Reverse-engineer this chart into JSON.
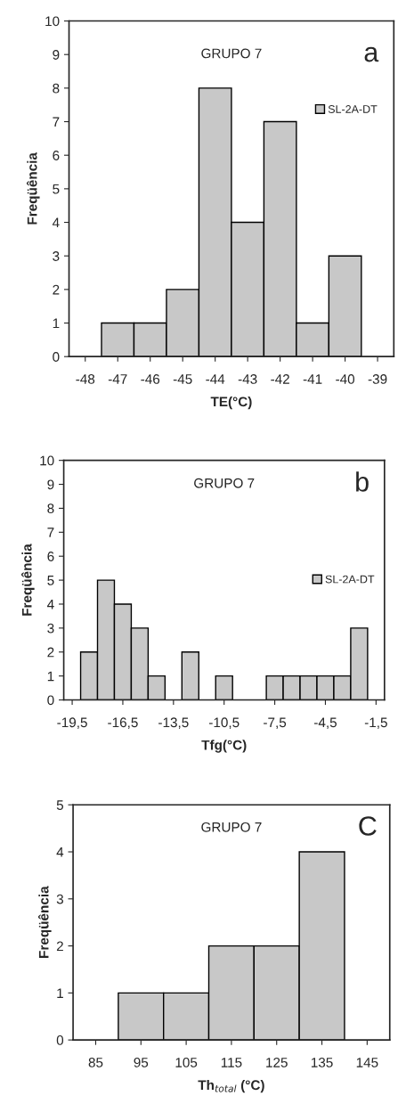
{
  "chart_data": [
    {
      "type": "bar",
      "title": "GRUPO 7",
      "xlabel": "TE(°C)",
      "ylabel": "Freqüência",
      "annotations": [
        "a"
      ],
      "categories": [
        "-48",
        "-47",
        "-46",
        "-45",
        "-44",
        "-43",
        "-42",
        "-41",
        "-40",
        "-39"
      ],
      "series": [
        {
          "name": "SL-2A-DT",
          "color": "#c8c8c8",
          "values": [
            null,
            1,
            1,
            2,
            8,
            4,
            7,
            1,
            3,
            null
          ]
        }
      ],
      "ylim": [
        0,
        10
      ],
      "yticks": [
        0,
        1,
        2,
        3,
        4,
        5,
        6,
        7,
        8,
        9,
        10
      ],
      "legend": "top right"
    },
    {
      "type": "bar",
      "title": "GRUPO 7",
      "xlabel": "Tfg(°C)",
      "ylabel": "Freqüência",
      "annotations": [
        "b"
      ],
      "categories": [
        "-19,5",
        null,
        null,
        "-16,5",
        null,
        null,
        "-13,5",
        null,
        null,
        "-10,5",
        null,
        null,
        "-7,5",
        null,
        null,
        "-4,5",
        null,
        null,
        "-1,5"
      ],
      "series": [
        {
          "name": "SL-2A-DT",
          "color": "#c8c8c8",
          "values": [
            null,
            2,
            5,
            4,
            3,
            1,
            null,
            2,
            null,
            1,
            null,
            null,
            1,
            1,
            1,
            1,
            1,
            3,
            null
          ]
        }
      ],
      "ylim": [
        0,
        10
      ],
      "yticks": [
        0,
        1,
        2,
        3,
        4,
        5,
        6,
        7,
        8,
        9,
        10
      ],
      "legend": "right"
    },
    {
      "type": "bar",
      "title": "GRUPO 7",
      "xlabel": "Th$_{total}$ (°C)",
      "ylabel": "Freqüência",
      "annotations": [
        "C"
      ],
      "categories": [
        "85",
        "95",
        "105",
        "115",
        "125",
        "135",
        "145"
      ],
      "series": [
        {
          "color": "#c8c8c8",
          "values": [
            null,
            1,
            1,
            2,
            2,
            4,
            null
          ]
        }
      ],
      "ylim": [
        0,
        5
      ],
      "yticks": [
        0,
        1,
        2,
        3,
        4,
        5
      ],
      "legend": false
    }
  ]
}
